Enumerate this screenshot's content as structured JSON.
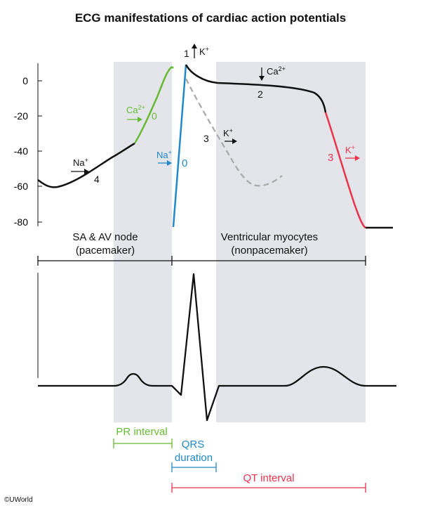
{
  "title": "ECG manifestations of cardiac action potentials",
  "y_ticks": [
    "0",
    "-20",
    "-40",
    "-60",
    "-80"
  ],
  "regions": {
    "sa_av": {
      "line1": "SA & AV node",
      "line2": "(pacemaker)"
    },
    "ventricular": {
      "line1": "Ventricular myocytes",
      "line2": "(nonpacemaker)"
    }
  },
  "pacemaker_phases": {
    "phase4": {
      "label": "4",
      "ion": "Na",
      "charge": "+"
    },
    "phase0": {
      "label": "0",
      "ion": "Ca",
      "charge": "2+"
    }
  },
  "ventricular_phases": {
    "phase0": {
      "label": "0",
      "ion": "Na",
      "charge": "+"
    },
    "phase1": {
      "label": "1",
      "ion": "K",
      "charge": "+"
    },
    "phase2": {
      "label": "2",
      "ion": "Ca",
      "charge": "2+"
    },
    "phase3_dashed": {
      "label": "3",
      "ion": "K",
      "charge": "+"
    },
    "phase3": {
      "label": "3",
      "ion": "K",
      "charge": "+"
    }
  },
  "intervals": {
    "pr": "PR interval",
    "qrs_line1": "QRS",
    "qrs_line2": "duration",
    "qt": "QT interval"
  },
  "copyright": "©UWorld",
  "colors": {
    "green": "#66bb33",
    "blue": "#2288c8",
    "red": "#e8334a",
    "gray_band": "#e3e5ea",
    "dashed": "#a8a8a8",
    "black": "#111111"
  }
}
